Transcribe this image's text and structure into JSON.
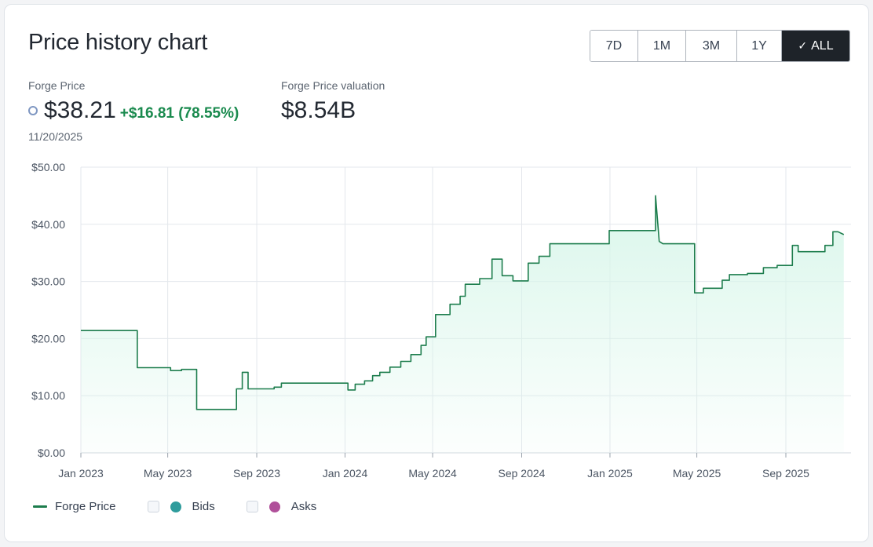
{
  "header": {
    "title": "Price history chart"
  },
  "range_buttons": [
    {
      "label": "7D",
      "active": false
    },
    {
      "label": "1M",
      "active": false
    },
    {
      "label": "3M",
      "active": false
    },
    {
      "label": "1Y",
      "active": false
    },
    {
      "label": "ALL",
      "active": true,
      "icon": "check-icon"
    }
  ],
  "stats": {
    "price_label": "Forge Price",
    "price_value": "$38.21",
    "price_change": "+$16.81 (78.55%)",
    "valuation_label": "Forge Price valuation",
    "valuation_value": "$8.54B",
    "date": "11/20/2025"
  },
  "colors": {
    "series_line": "#1d7d4d",
    "series_fill": "#d8f6ea",
    "change_positive": "#1a8a4e",
    "bids_dot": "#2f9c9c",
    "asks_dot": "#b0509a",
    "active_button": "#1e2329"
  },
  "legend": {
    "items": [
      {
        "label": "Forge Price",
        "type": "line"
      },
      {
        "label": "Bids",
        "type": "dot",
        "checked": false
      },
      {
        "label": "Asks",
        "type": "dot",
        "checked": false
      }
    ]
  },
  "chart_data": {
    "type": "area",
    "x_tick_labels": [
      "Jan 2023",
      "May 2023",
      "Sep 2023",
      "Jan 2024",
      "May 2024",
      "Sep 2024",
      "Jan 2025",
      "May 2025",
      "Sep 2025"
    ],
    "y_tick_labels": [
      "$0.00",
      "$10.00",
      "$20.00",
      "$30.00",
      "$40.00",
      "$50.00"
    ],
    "ylim": [
      0,
      50
    ],
    "xlim": [
      "2023-01-01",
      "2025-11-20"
    ],
    "grid": true,
    "legend_position": "bottom-left",
    "series": [
      {
        "name": "Forge Price",
        "points": [
          [
            "2023-01-01",
            21.4
          ],
          [
            "2023-03-20",
            21.4
          ],
          [
            "2023-03-20",
            14.9
          ],
          [
            "2023-05-05",
            14.9
          ],
          [
            "2023-05-05",
            14.4
          ],
          [
            "2023-05-20",
            14.4
          ],
          [
            "2023-05-20",
            14.6
          ],
          [
            "2023-06-10",
            14.6
          ],
          [
            "2023-06-10",
            7.6
          ],
          [
            "2023-08-04",
            7.6
          ],
          [
            "2023-08-04",
            11.2
          ],
          [
            "2023-08-12",
            11.2
          ],
          [
            "2023-08-12",
            14.1
          ],
          [
            "2023-08-20",
            14.1
          ],
          [
            "2023-08-20",
            11.2
          ],
          [
            "2023-09-25",
            11.2
          ],
          [
            "2023-09-25",
            11.5
          ],
          [
            "2023-10-05",
            11.5
          ],
          [
            "2023-10-05",
            12.2
          ],
          [
            "2024-01-05",
            12.2
          ],
          [
            "2024-01-05",
            11.0
          ],
          [
            "2024-01-15",
            11.0
          ],
          [
            "2024-01-15",
            12.0
          ],
          [
            "2024-01-28",
            12.0
          ],
          [
            "2024-01-28",
            12.6
          ],
          [
            "2024-02-08",
            12.6
          ],
          [
            "2024-02-08",
            13.5
          ],
          [
            "2024-02-18",
            13.5
          ],
          [
            "2024-02-18",
            14.1
          ],
          [
            "2024-03-03",
            14.1
          ],
          [
            "2024-03-03",
            15.0
          ],
          [
            "2024-03-18",
            15.0
          ],
          [
            "2024-03-18",
            16.0
          ],
          [
            "2024-04-01",
            16.0
          ],
          [
            "2024-04-01",
            17.2
          ],
          [
            "2024-04-15",
            17.2
          ],
          [
            "2024-04-15",
            18.8
          ],
          [
            "2024-04-22",
            18.8
          ],
          [
            "2024-04-22",
            20.3
          ],
          [
            "2024-05-05",
            20.3
          ],
          [
            "2024-05-05",
            24.2
          ],
          [
            "2024-05-25",
            24.2
          ],
          [
            "2024-05-25",
            26.0
          ],
          [
            "2024-06-08",
            26.0
          ],
          [
            "2024-06-08",
            27.4
          ],
          [
            "2024-06-15",
            27.4
          ],
          [
            "2024-06-15",
            29.5
          ],
          [
            "2024-07-05",
            29.5
          ],
          [
            "2024-07-05",
            30.5
          ],
          [
            "2024-07-22",
            30.5
          ],
          [
            "2024-07-22",
            33.9
          ],
          [
            "2024-08-05",
            33.9
          ],
          [
            "2024-08-05",
            31.0
          ],
          [
            "2024-08-20",
            31.0
          ],
          [
            "2024-08-20",
            30.1
          ],
          [
            "2024-09-10",
            30.1
          ],
          [
            "2024-09-10",
            33.2
          ],
          [
            "2024-09-25",
            33.2
          ],
          [
            "2024-09-25",
            34.4
          ],
          [
            "2024-10-10",
            34.4
          ],
          [
            "2024-10-10",
            36.6
          ],
          [
            "2024-12-31",
            36.6
          ],
          [
            "2024-12-31",
            38.9
          ],
          [
            "2025-03-05",
            38.9
          ],
          [
            "2025-03-05",
            45.0
          ],
          [
            "2025-03-10",
            37.0
          ],
          [
            "2025-03-15",
            36.6
          ],
          [
            "2025-04-28",
            36.6
          ],
          [
            "2025-04-28",
            28.0
          ],
          [
            "2025-05-10",
            28.0
          ],
          [
            "2025-05-10",
            28.8
          ],
          [
            "2025-06-05",
            28.8
          ],
          [
            "2025-06-05",
            30.2
          ],
          [
            "2025-06-15",
            30.2
          ],
          [
            "2025-06-15",
            31.2
          ],
          [
            "2025-07-10",
            31.2
          ],
          [
            "2025-07-10",
            31.4
          ],
          [
            "2025-08-01",
            31.4
          ],
          [
            "2025-08-01",
            32.4
          ],
          [
            "2025-08-20",
            32.4
          ],
          [
            "2025-08-20",
            32.8
          ],
          [
            "2025-09-10",
            32.8
          ],
          [
            "2025-09-10",
            36.3
          ],
          [
            "2025-09-18",
            36.3
          ],
          [
            "2025-09-18",
            35.2
          ],
          [
            "2025-10-25",
            35.2
          ],
          [
            "2025-10-25",
            36.3
          ],
          [
            "2025-11-05",
            36.3
          ],
          [
            "2025-11-05",
            38.7
          ],
          [
            "2025-11-12",
            38.7
          ],
          [
            "2025-11-20",
            38.2
          ]
        ]
      }
    ]
  }
}
